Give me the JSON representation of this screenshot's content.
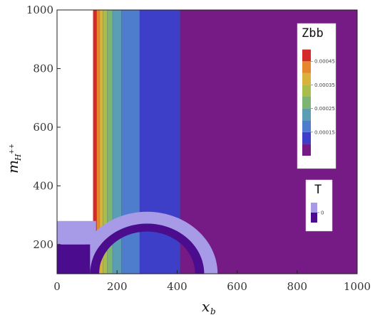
{
  "chart_data": {
    "type": "heatmap",
    "subtype": "contour",
    "xlabel_main": "x",
    "xlabel_sub": "b",
    "ylabel_main": "m",
    "ylabel_sub": "H",
    "ylabel_sup": "++",
    "xlim": [
      0,
      1000
    ],
    "ylim": [
      100,
      1000
    ],
    "x_ticks": [
      "0",
      "200",
      "400",
      "600",
      "800",
      "1000"
    ],
    "y_ticks": [
      "200",
      "400",
      "600",
      "800",
      "1000"
    ],
    "contour_bands": [
      {
        "x_from": 120,
        "x_to": 132,
        "color": "#d42a2a"
      },
      {
        "x_from": 132,
        "x_to": 142,
        "color": "#e5872c"
      },
      {
        "x_from": 142,
        "x_to": 153,
        "color": "#d8b23a"
      },
      {
        "x_from": 153,
        "x_to": 167,
        "color": "#a9bd4a"
      },
      {
        "x_from": 167,
        "x_to": 185,
        "color": "#7db473"
      },
      {
        "x_from": 185,
        "x_to": 215,
        "color": "#5a9eb4"
      },
      {
        "x_from": 215,
        "x_to": 275,
        "color": "#4d7dcc"
      },
      {
        "x_from": 275,
        "x_to": 410,
        "color": "#3d3fc9"
      },
      {
        "x_from": 410,
        "x_to": 1000,
        "color": "#761a86"
      }
    ],
    "excluded_region_color": "#ffffff",
    "excluded_below_x": 120,
    "T_region": {
      "outer_color": "#a79ae6",
      "inner_color": "#4b0d8e",
      "outer_arc": {
        "center_x": 300,
        "center_y": 100,
        "radius_outer": 235,
        "radius_inner": 190
      },
      "inner_arc": {
        "center_x": 300,
        "center_y": 100,
        "radius_outer": 190,
        "radius_inner": 160
      }
    },
    "legend_zbb": {
      "title": "Zbb",
      "colors": [
        "#761a86",
        "#3d3fc9",
        "#4d7dcc",
        "#5a9eb4",
        "#7db473",
        "#a9bd4a",
        "#d8b23a",
        "#e5872c",
        "#d42a2a"
      ],
      "tick_labels": [
        "0.00015",
        "0.00025",
        "0.00035",
        "0.00045"
      ],
      "position": "top-right"
    },
    "legend_t": {
      "title": "T",
      "colors": [
        "#a79ae6",
        "#4b0d8e"
      ],
      "tick_labels": [
        "0"
      ],
      "position": "right"
    }
  }
}
